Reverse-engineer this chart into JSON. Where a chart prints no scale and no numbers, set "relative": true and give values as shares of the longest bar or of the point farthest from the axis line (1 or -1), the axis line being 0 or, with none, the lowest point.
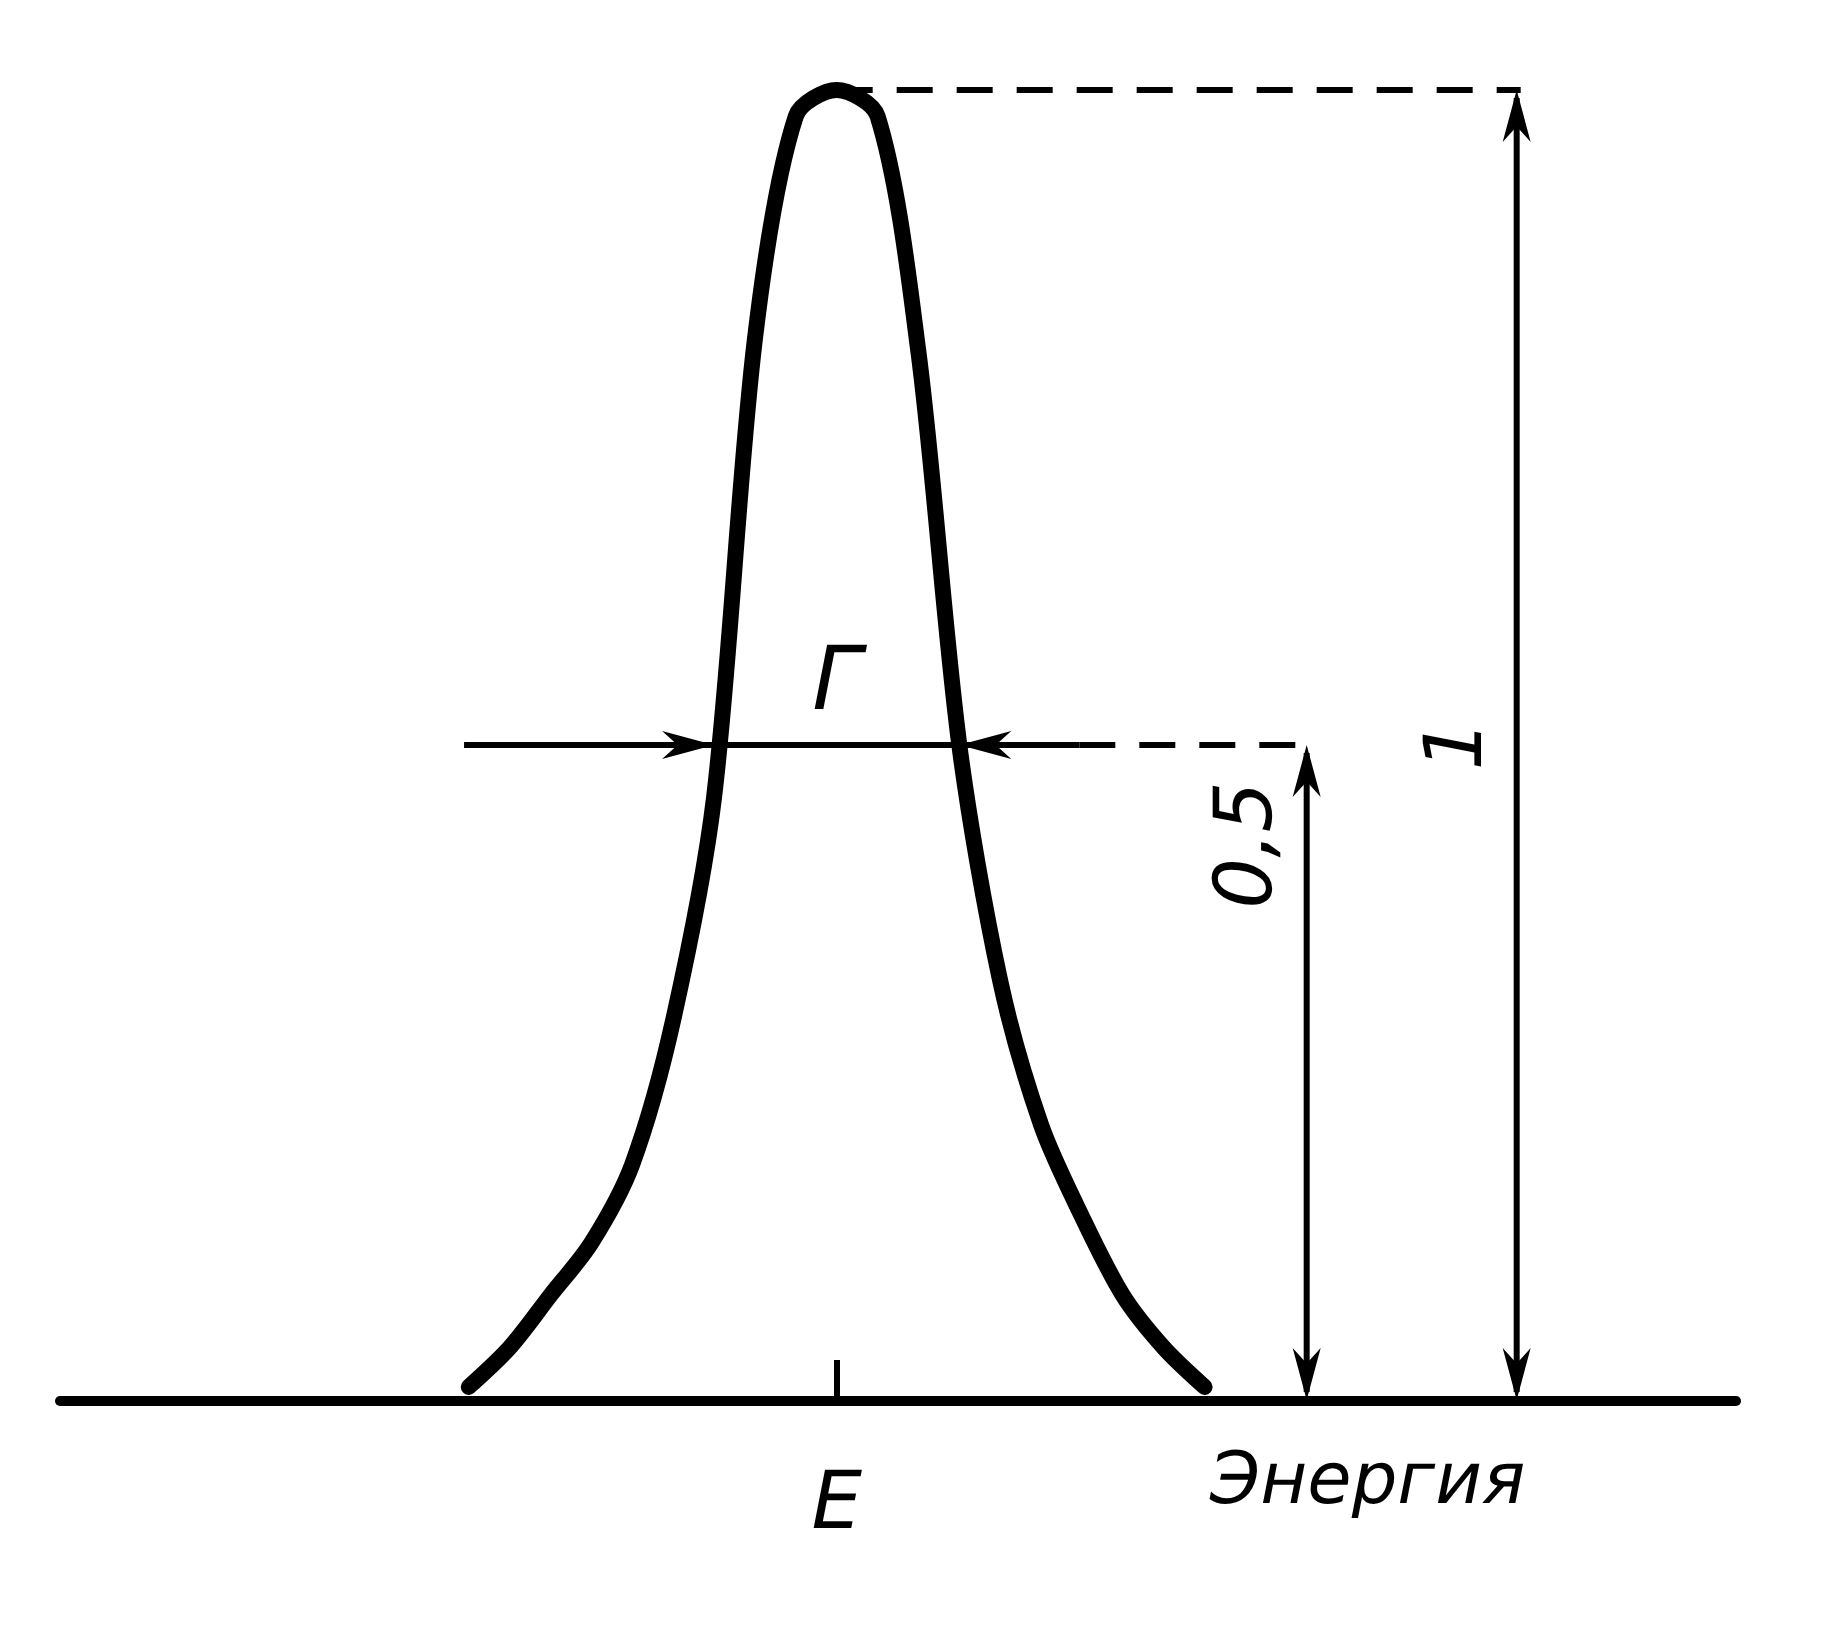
{
  "chart_data": {
    "type": "line",
    "relative": true,
    "xlabel": "Энергия",
    "color": "#000000",
    "line_style": "solid",
    "categories": [
      null,
      null,
      null,
      null,
      null,
      null,
      null,
      null,
      null,
      null,
      null,
      null,
      null,
      null,
      null,
      null,
      null,
      null,
      null,
      null,
      null,
      null,
      null,
      null,
      null,
      null,
      null,
      null,
      null,
      null,
      null,
      null,
      null,
      null,
      null,
      null,
      null,
      null,
      null,
      null,
      null,
      null
    ],
    "values": [
      null,
      null,
      null,
      null,
      null,
      null,
      null,
      null,
      null,
      null,
      0.01,
      0.04,
      0.08,
      0.12,
      0.18,
      0.29,
      0.46,
      0.81,
      0.98,
      1,
      0.98,
      0.8,
      0.5,
      0.32,
      0.21,
      0.14,
      0.08,
      0.04,
      0.01,
      null,
      null,
      null,
      null,
      null,
      null,
      null,
      null,
      null,
      null,
      null,
      null,
      null
    ],
    "ref_lines": [
      {
        "axis": "y",
        "value": 1,
        "label": "1",
        "line_style": "dashed"
      },
      {
        "axis": "y",
        "value": 0.5,
        "label": "0,5",
        "line_style": "dashed"
      }
    ],
    "annotations": [
      "E",
      "Г"
    ]
  }
}
